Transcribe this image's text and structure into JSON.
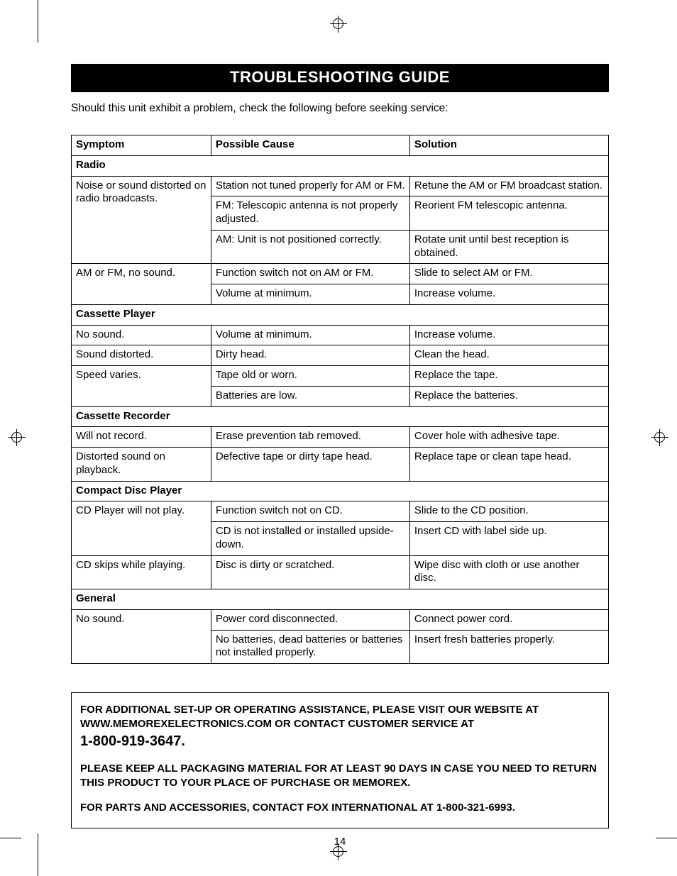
{
  "page": {
    "title": "TROUBLESHOOTING GUIDE",
    "intro": "Should this unit exhibit a problem, check the following before seeking service:",
    "page_number": "14"
  },
  "table": {
    "headers": {
      "symptom": "Symptom",
      "cause": "Possible Cause",
      "solution": "Solution"
    },
    "sections": [
      {
        "name": "Radio",
        "rows": [
          {
            "symptom": "Noise or sound distorted on radio broadcasts.",
            "cause": "Station not tuned properly for AM or FM.",
            "solution": "Retune the AM or FM broadcast station."
          },
          {
            "symptom": "",
            "cause": "FM: Telescopic antenna is not properly adjusted.",
            "solution": "Reorient FM telescopic antenna."
          },
          {
            "symptom": "",
            "cause": "AM: Unit is not positioned correctly.",
            "solution": "Rotate unit until best reception is obtained."
          },
          {
            "symptom": "AM or FM, no sound.",
            "cause": "Function switch not on AM or FM.",
            "solution": "Slide to select AM or FM."
          },
          {
            "symptom": "",
            "cause": "Volume at minimum.",
            "solution": "Increase volume."
          }
        ]
      },
      {
        "name": "Cassette Player",
        "rows": [
          {
            "symptom": "No sound.",
            "cause": "Volume at minimum.",
            "solution": "Increase volume."
          },
          {
            "symptom": "Sound distorted.",
            "cause": "Dirty head.",
            "solution": "Clean the head."
          },
          {
            "symptom": "Speed varies.",
            "cause": "Tape old or worn.",
            "solution": "Replace the tape."
          },
          {
            "symptom": "",
            "cause": "Batteries are low.",
            "solution": "Replace the batteries."
          }
        ]
      },
      {
        "name": "Cassette Recorder",
        "rows": [
          {
            "symptom": "Will not record.",
            "cause": "Erase prevention tab removed.",
            "solution": "Cover hole with adhesive tape."
          },
          {
            "symptom": "Distorted sound on playback.",
            "cause": "Defective tape or dirty tape head.",
            "solution": "Replace tape or clean tape head."
          }
        ]
      },
      {
        "name": "Compact Disc Player",
        "rows": [
          {
            "symptom": "CD Player will not play.",
            "cause": "Function switch not on CD.",
            "solution": "Slide to the CD position."
          },
          {
            "symptom": "",
            "cause": "CD is not installed or installed upside-down.",
            "solution": "Insert CD with label side up."
          },
          {
            "symptom": "CD skips while playing.",
            "cause": "Disc is dirty or scratched.",
            "solution": "Wipe disc with cloth or use another disc."
          }
        ]
      },
      {
        "name": "General",
        "rows": [
          {
            "symptom": "No sound.",
            "cause": "Power cord disconnected.",
            "solution": "Connect power cord."
          },
          {
            "symptom": "",
            "cause": "No batteries, dead batteries or batteries not installed properly.",
            "solution": "Insert fresh batteries properly."
          }
        ]
      }
    ]
  },
  "info": {
    "assist1": "FOR ADDITIONAL SET-UP OR OPERATING ASSISTANCE, PLEASE VISIT OUR WEBSITE AT WWW.MEMOREXELECTRONICS.COM OR CONTACT CUSTOMER SERVICE AT",
    "phone": "1-800-919-3647.",
    "packaging": "PLEASE KEEP ALL PACKAGING MATERIAL FOR AT LEAST 90 DAYS IN CASE YOU NEED TO RETURN THIS PRODUCT  TO YOUR PLACE OF PURCHASE OR MEMOREX.",
    "parts": "FOR PARTS AND ACCESSORIES, CONTACT FOX INTERNATIONAL AT 1-800-321-6993."
  },
  "style": {
    "colors": {
      "background": "#ffffff",
      "text": "#000000",
      "titlebar_bg": "#000000",
      "titlebar_fg": "#ffffff",
      "border": "#000000"
    },
    "fonts": {
      "body_size_pt": 12,
      "title_size_pt": 17,
      "phone_size_pt": 15,
      "family": "Arial"
    },
    "column_widths_pct": {
      "symptom": 26,
      "cause": 37,
      "solution": 37
    }
  }
}
